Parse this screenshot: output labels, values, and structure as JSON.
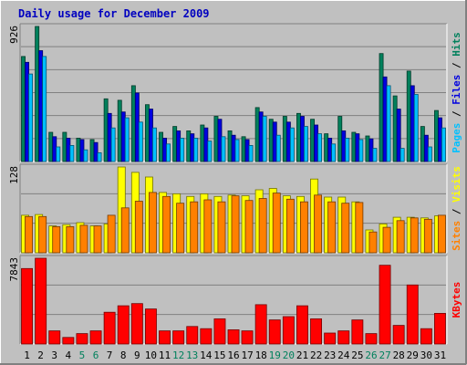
{
  "chart_data": {
    "type": "bar",
    "title": "Daily usage for December 2009",
    "categories": [
      "1",
      "2",
      "3",
      "4",
      "5",
      "6",
      "7",
      "8",
      "9",
      "10",
      "11",
      "12",
      "13",
      "14",
      "15",
      "16",
      "17",
      "18",
      "19",
      "20",
      "21",
      "22",
      "23",
      "24",
      "25",
      "26",
      "27",
      "28",
      "29",
      "30",
      "31"
    ],
    "weekend_days": [
      "5",
      "6",
      "12",
      "13",
      "19",
      "20",
      "26",
      "27"
    ],
    "panels": [
      {
        "name": "hits-files-pages",
        "ymax_label": "926",
        "ymax": 926,
        "legend": [
          "Pages",
          "Files",
          "Hits"
        ],
        "series": [
          {
            "name": "Hits",
            "color": "#00805c",
            "values": [
              720,
              926,
              200,
              200,
              160,
              150,
              430,
              420,
              520,
              390,
              200,
              240,
              210,
              250,
              310,
              210,
              170,
              370,
              290,
              310,
              330,
              290,
              190,
              310,
              200,
              175,
              740,
              450,
              620,
              240,
              350
            ]
          },
          {
            "name": "Files",
            "color": "#0000e0",
            "values": [
              680,
              760,
              170,
              160,
              150,
              130,
              330,
              340,
              470,
              360,
              160,
              210,
              190,
              230,
              290,
              180,
              150,
              340,
              270,
              270,
              310,
              250,
              160,
              210,
              190,
              155,
              580,
              360,
              520,
              180,
              300
            ]
          },
          {
            "name": "Pages",
            "color": "#00c0ff",
            "values": [
              600,
              720,
              100,
              110,
              80,
              60,
              230,
              300,
              270,
              230,
              120,
              160,
              160,
              140,
              170,
              150,
              110,
              310,
              180,
              230,
              240,
              190,
              120,
              160,
              150,
              90,
              520,
              90,
              460,
              100,
              230
            ]
          }
        ]
      },
      {
        "name": "visits-sites",
        "ymax_label": "128",
        "ymax": 128,
        "legend": [
          "Sites",
          "Visits"
        ],
        "series": [
          {
            "name": "Visits",
            "color": "#ffff00",
            "values": [
              56,
              57,
              40,
              42,
              45,
              40,
              43,
              128,
              120,
              113,
              90,
              88,
              84,
              88,
              84,
              86,
              85,
              94,
              96,
              85,
              84,
              110,
              83,
              83,
              76,
              34,
              43,
              53,
              53,
              52,
              55
            ]
          },
          {
            "name": "Sites",
            "color": "#ff8000",
            "values": [
              54,
              54,
              39,
              39,
              41,
              40,
              56,
              67,
              77,
              90,
              84,
              74,
              76,
              79,
              76,
              85,
              78,
              81,
              89,
              80,
              76,
              86,
              76,
              74,
              75,
              31,
              38,
              48,
              52,
              50,
              56
            ]
          }
        ]
      },
      {
        "name": "kbytes",
        "ymax_label": "7843",
        "ymax": 7843,
        "legend": [
          "KBytes"
        ],
        "series": [
          {
            "name": "KBytes",
            "color": "#ff0000",
            "values": [
              6900,
              7843,
              1200,
              600,
              950,
              1200,
              2900,
              3500,
              3700,
              3200,
              1200,
              1200,
              1600,
              1400,
              2300,
              1300,
              1200,
              3600,
              2200,
              2500,
              3500,
              2300,
              1000,
              1200,
              2200,
              950,
              7200,
              1700,
              5400,
              1400,
              2800
            ]
          }
        ]
      }
    ]
  }
}
